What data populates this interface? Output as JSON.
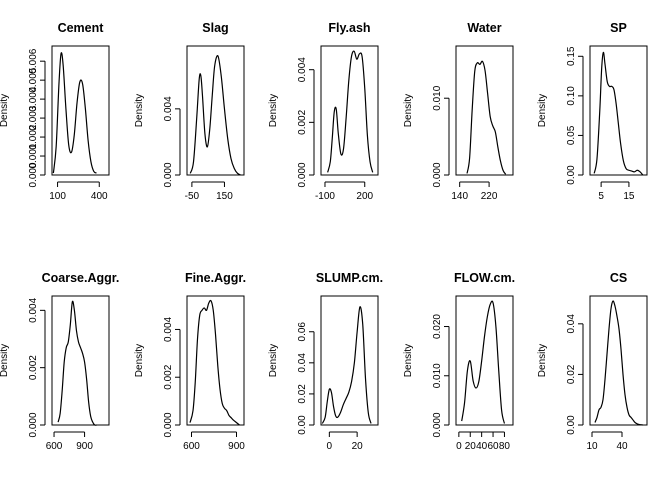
{
  "chart_data": [
    {
      "type": "line",
      "title": "Cement",
      "ylabel": "Density",
      "xlim": [
        60,
        470
      ],
      "ylim": [
        0,
        0.0068
      ],
      "xticks": [
        100,
        400
      ],
      "xtick_labels": [
        "100",
        "400"
      ],
      "yticks": [
        0,
        0.001,
        0.002,
        0.003,
        0.004,
        0.005,
        0.006
      ],
      "ytick_labels": [
        "0.000",
        "0.001",
        "0.002",
        "0.003",
        "0.004",
        "0.005",
        "0.006"
      ],
      "x": [
        70,
        90,
        110,
        125,
        140,
        160,
        180,
        200,
        220,
        240,
        260,
        280,
        300,
        320,
        340,
        360,
        380
      ],
      "y": [
        0.0001,
        0.0015,
        0.0048,
        0.0064,
        0.0058,
        0.0035,
        0.0016,
        0.0012,
        0.0021,
        0.0038,
        0.0049,
        0.0048,
        0.0035,
        0.0018,
        0.0007,
        0.0002,
        0.0001
      ]
    },
    {
      "type": "line",
      "title": "Slag",
      "ylabel": "Density",
      "xlim": [
        -80,
        270
      ],
      "ylim": [
        0,
        0.0078
      ],
      "xticks": [
        -50,
        150
      ],
      "xtick_labels": [
        "-50",
        "150"
      ],
      "yticks": [
        0,
        0.004
      ],
      "ytick_labels": [
        "0.000",
        "0.004"
      ],
      "x": [
        -60,
        -40,
        -20,
        -5,
        5,
        15,
        30,
        45,
        60,
        75,
        90,
        110,
        130,
        150,
        170,
        190,
        210,
        230,
        250
      ],
      "y": [
        0.0001,
        0.0008,
        0.0035,
        0.0058,
        0.006,
        0.0048,
        0.0025,
        0.0017,
        0.0028,
        0.0048,
        0.0066,
        0.0072,
        0.006,
        0.004,
        0.0022,
        0.001,
        0.0004,
        0.0001,
        0.0
      ],
      "spline": true
    },
    {
      "type": "line",
      "title": "Fly.ash",
      "ylabel": "Density",
      "xlim": [
        -130,
        300
      ],
      "ylim": [
        0,
        0.0049
      ],
      "xticks": [
        -100,
        200
      ],
      "xtick_labels": [
        "-100",
        "200"
      ],
      "yticks": [
        0,
        0.002,
        0.004
      ],
      "ytick_labels": [
        "0.000",
        "0.002",
        "0.004"
      ],
      "x": [
        -80,
        -60,
        -45,
        -30,
        -15,
        0,
        20,
        40,
        60,
        80,
        100,
        120,
        140,
        160,
        180,
        200,
        220,
        240,
        260
      ],
      "y": [
        0.0001,
        0.0005,
        0.0014,
        0.0024,
        0.0025,
        0.0016,
        0.0008,
        0.001,
        0.0022,
        0.0036,
        0.0045,
        0.0047,
        0.0044,
        0.0046,
        0.0045,
        0.0033,
        0.0015,
        0.0005,
        0.0001
      ],
      "spline": true
    },
    {
      "type": "line",
      "title": "Water",
      "ylabel": "Density",
      "xlim": [
        130,
        285
      ],
      "ylim": [
        0,
        0.0168
      ],
      "xticks": [
        140,
        220
      ],
      "xtick_labels": [
        "140",
        "220"
      ],
      "yticks": [
        0,
        0.01
      ],
      "ytick_labels": [
        "0.000",
        "0.010"
      ],
      "x": [
        160,
        167,
        174,
        181,
        188,
        195,
        202,
        209,
        216,
        223,
        230,
        237,
        244,
        251,
        258,
        265
      ],
      "y": [
        0.0002,
        0.0022,
        0.0085,
        0.0135,
        0.0146,
        0.0144,
        0.0148,
        0.0136,
        0.0106,
        0.0076,
        0.0064,
        0.0056,
        0.0036,
        0.0018,
        0.0006,
        0.0001
      ],
      "spline": true
    },
    {
      "type": "line",
      "title": "SP",
      "ylabel": "Density",
      "xlim": [
        1,
        21.5
      ],
      "ylim": [
        0,
        0.163
      ],
      "xticks": [
        5,
        15
      ],
      "xtick_labels": [
        "5",
        "15"
      ],
      "yticks": [
        0,
        0.05,
        0.1,
        0.15
      ],
      "ytick_labels": [
        "0.00",
        "0.05",
        "0.10",
        "0.15"
      ],
      "x": [
        2.5,
        3.5,
        4.5,
        5.2,
        5.8,
        6.4,
        7.2,
        8,
        8.8,
        9.6,
        10.4,
        11.2,
        12,
        13,
        14,
        15,
        16,
        17,
        18,
        19,
        20
      ],
      "y": [
        0.002,
        0.02,
        0.08,
        0.135,
        0.155,
        0.14,
        0.118,
        0.112,
        0.112,
        0.108,
        0.09,
        0.065,
        0.04,
        0.018,
        0.008,
        0.006,
        0.005,
        0.004,
        0.006,
        0.004,
        0.0
      ],
      "spline": true
    },
    {
      "type": "line",
      "title": "Coarse.Aggr.",
      "ylabel": "Density",
      "xlim": [
        580,
        1140
      ],
      "ylim": [
        0,
        0.0045
      ],
      "xticks": [
        600,
        900
      ],
      "xtick_labels": [
        "600",
        "900"
      ],
      "yticks": [
        0,
        0.002,
        0.004
      ],
      "ytick_labels": [
        "0.000",
        "0.002",
        "0.004"
      ],
      "x": [
        640,
        660,
        680,
        700,
        720,
        740,
        760,
        780,
        800,
        820,
        840,
        860,
        880,
        900,
        920,
        940,
        960,
        980,
        1000,
        1020
      ],
      "y": [
        0.0001,
        0.0004,
        0.0012,
        0.0022,
        0.0027,
        0.0029,
        0.0035,
        0.0043,
        0.004,
        0.0033,
        0.0029,
        0.0027,
        0.0025,
        0.0022,
        0.0016,
        0.0008,
        0.0003,
        0.0001,
        0.0,
        0.0
      ],
      "spline": true
    },
    {
      "type": "line",
      "title": "Fine.Aggr.",
      "ylabel": "Density",
      "xlim": [
        570,
        950
      ],
      "ylim": [
        0,
        0.0054
      ],
      "xticks": [
        600,
        900
      ],
      "xtick_labels": [
        "600",
        "900"
      ],
      "yticks": [
        0,
        0.002,
        0.004
      ],
      "ytick_labels": [
        "0.000",
        "0.002",
        "0.004"
      ],
      "x": [
        590,
        610,
        625,
        640,
        655,
        670,
        685,
        700,
        715,
        730,
        745,
        760,
        775,
        790,
        805,
        820,
        835,
        850,
        865,
        880,
        900,
        920
      ],
      "y": [
        0.0001,
        0.0006,
        0.0018,
        0.0036,
        0.0046,
        0.0048,
        0.0049,
        0.0048,
        0.0051,
        0.0052,
        0.0048,
        0.0038,
        0.0025,
        0.0015,
        0.0009,
        0.0007,
        0.0006,
        0.0004,
        0.0003,
        0.0002,
        0.0001,
        0.0
      ],
      "spline": true
    },
    {
      "type": "line",
      "title": "SLUMP.cm.",
      "ylabel": "Density",
      "xlim": [
        -6,
        35
      ],
      "ylim": [
        0,
        0.083
      ],
      "xticks": [
        0,
        20
      ],
      "xtick_labels": [
        "0",
        "20"
      ],
      "yticks": [
        0,
        0.02,
        0.04,
        0.06
      ],
      "ytick_labels": [
        "0.00",
        "0.02",
        "0.04",
        "0.06"
      ],
      "x": [
        -5,
        -3,
        -1.5,
        0,
        1.5,
        3,
        4.5,
        6,
        8,
        10,
        12,
        14,
        16,
        18,
        20,
        22,
        24,
        26,
        28,
        30
      ],
      "y": [
        0.001,
        0.005,
        0.015,
        0.023,
        0.021,
        0.012,
        0.006,
        0.005,
        0.008,
        0.013,
        0.017,
        0.021,
        0.028,
        0.04,
        0.06,
        0.076,
        0.065,
        0.03,
        0.008,
        0.001
      ],
      "spline": true
    },
    {
      "type": "line",
      "title": "FLOW.cm.",
      "ylabel": "Density",
      "xlim": [
        -5,
        95
      ],
      "ylim": [
        0,
        0.0262
      ],
      "xticks": [
        0,
        20,
        40,
        60,
        80
      ],
      "xtick_labels": [
        "0",
        "20",
        "40",
        "60",
        "80"
      ],
      "yticks": [
        0,
        0.01,
        0.02
      ],
      "ytick_labels": [
        "0.000",
        "0.010",
        "0.020"
      ],
      "x": [
        5,
        10,
        15,
        20,
        25,
        30,
        35,
        40,
        45,
        50,
        55,
        60,
        65,
        70,
        75,
        80
      ],
      "y": [
        0.0008,
        0.0045,
        0.011,
        0.013,
        0.009,
        0.0075,
        0.0088,
        0.013,
        0.018,
        0.022,
        0.0245,
        0.0248,
        0.02,
        0.011,
        0.003,
        0.0003
      ],
      "spline": true
    },
    {
      "type": "line",
      "title": "CS",
      "ylabel": "Density",
      "xlim": [
        8,
        65
      ],
      "ylim": [
        0,
        0.051
      ],
      "xticks": [
        10,
        40
      ],
      "xtick_labels": [
        "10",
        "40"
      ],
      "yticks": [
        0,
        0.02,
        0.04
      ],
      "ytick_labels": [
        "0.00",
        "0.02",
        "0.04"
      ],
      "x": [
        13,
        15,
        17,
        19,
        21,
        23,
        25,
        27,
        29,
        31,
        33,
        35,
        37,
        39,
        41,
        43,
        45,
        47,
        49,
        51,
        53,
        55,
        57,
        59,
        61
      ],
      "y": [
        0.001,
        0.003,
        0.006,
        0.007,
        0.01,
        0.018,
        0.028,
        0.038,
        0.046,
        0.049,
        0.047,
        0.043,
        0.038,
        0.03,
        0.02,
        0.012,
        0.007,
        0.004,
        0.003,
        0.002,
        0.001,
        0.0005,
        0.0002,
        0.0001,
        0.0
      ],
      "spline": true
    }
  ]
}
